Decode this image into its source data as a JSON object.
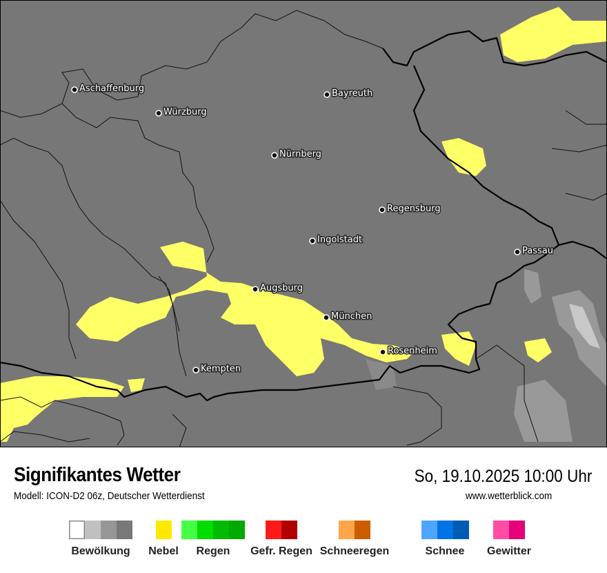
{
  "map": {
    "background_color": "#777777",
    "fog_color": "#ffff66",
    "border_color": "#000000",
    "cities": [
      {
        "name": "Aschaffenburg"
      },
      {
        "name": "Würzburg"
      },
      {
        "name": "Bayreuth"
      },
      {
        "name": "Nürnberg"
      },
      {
        "name": "Regensburg"
      },
      {
        "name": "Ingolstadt"
      },
      {
        "name": "Passau"
      },
      {
        "name": "Augsburg"
      },
      {
        "name": "München"
      },
      {
        "name": "Rosenheim"
      },
      {
        "name": "Kempten"
      }
    ]
  },
  "footer": {
    "title": "Signifikantes Wetter",
    "subtitle": "Modell: ICON-D2 06z, Deutscher Wetterdienst",
    "datetime": "So, 19.10.2025 10:00 Uhr",
    "website": "www.wetterblick.com"
  },
  "legend": [
    {
      "label": "Bewölkung",
      "colors": [
        "#ffffff",
        "#c0c0c0",
        "#969696",
        "#787878"
      ]
    },
    {
      "label": "Nebel",
      "colors": [
        "#ffe800"
      ]
    },
    {
      "label": "Regen",
      "colors": [
        "#44ff44",
        "#00dd00",
        "#00bb00",
        "#00aa00"
      ]
    },
    {
      "label": "Gefr. Regen",
      "colors": [
        "#ff1a1a",
        "#b00000"
      ]
    },
    {
      "label": "Schneeregen",
      "colors": [
        "#ffa54a",
        "#cc5c00"
      ]
    },
    {
      "label": "Schnee",
      "colors": [
        "#4da6ff",
        "#0073e6",
        "#005cb3"
      ]
    },
    {
      "label": "Gewitter",
      "colors": [
        "#ff4da6",
        "#e6007a"
      ]
    }
  ]
}
